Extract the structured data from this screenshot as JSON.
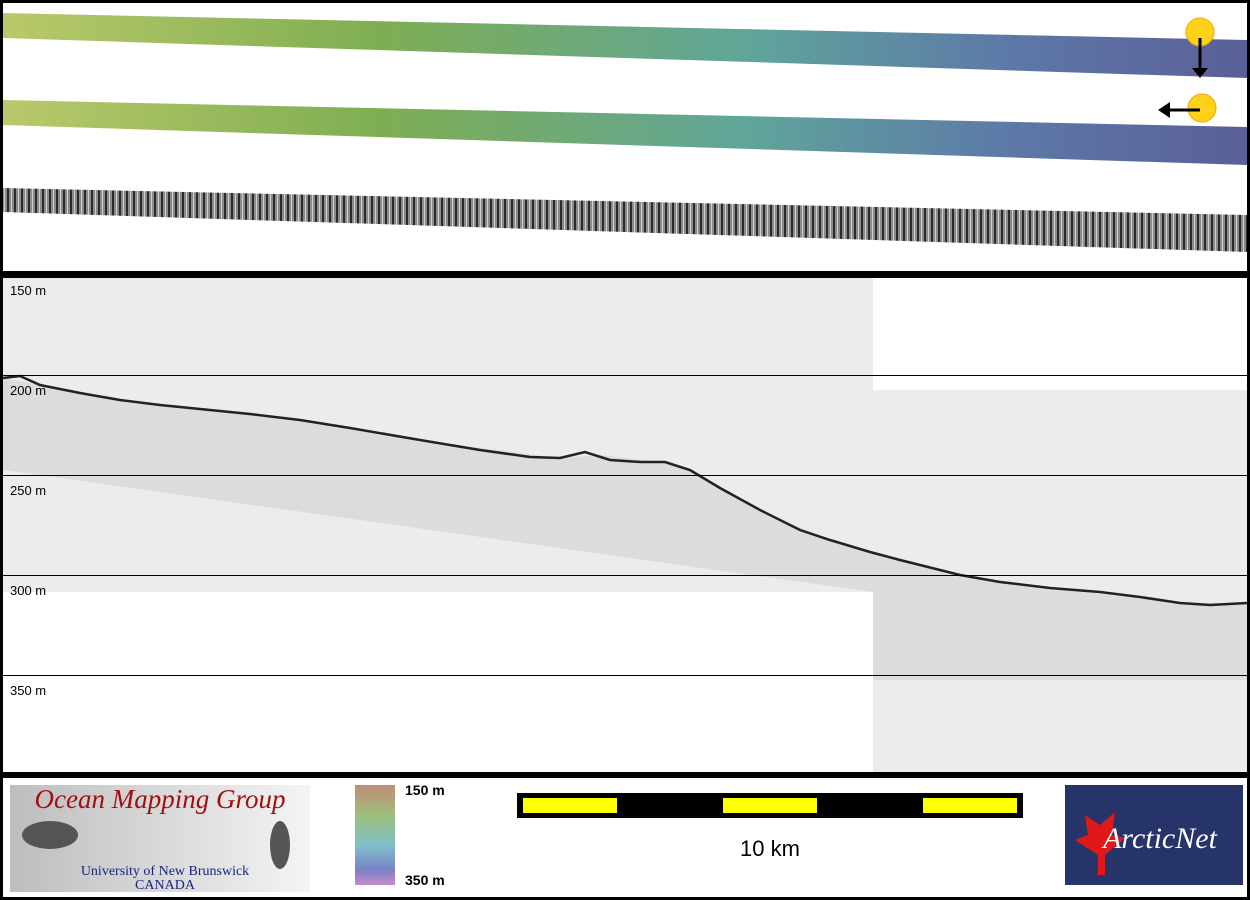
{
  "profile": {
    "depth_labels": [
      "150 m",
      "200 m",
      "250 m",
      "300 m",
      "350 m"
    ]
  },
  "logo": {
    "title": "Ocean Mapping Group",
    "university": "University of New Brunswick",
    "country": "CANADA"
  },
  "colorbar": {
    "top_label": "150 m",
    "bottom_label": "350 m"
  },
  "scale_bar": {
    "label": "10 km"
  },
  "partner_logo": {
    "name": "ArcticNet"
  }
}
